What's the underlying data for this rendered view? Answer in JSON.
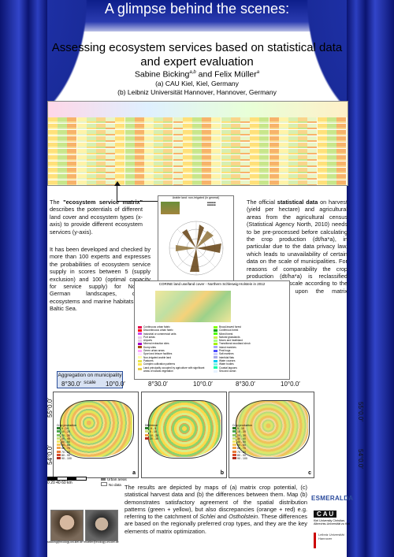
{
  "banner": "A glimpse behind the scenes:",
  "title_line1": "Assessing ecosystem services based on statistical data",
  "title_line2": "and expert evaluation",
  "authors": {
    "a1": "Sabine Bicking",
    "a1_sup": "a,b",
    "and": " and Felix Müller",
    "a2_sup": "a"
  },
  "affiliations": {
    "a": "(a) CAU Kiel, Kiel, Germany",
    "b": "(b) Leibniz Universität Hannover, Hannover, Germany"
  },
  "left_text": {
    "p1_bold": "\"ecosystem service matrix\"",
    "p1_pre": "The ",
    "p1_post": " describes the potentials of different land cover and ecosystem types (x-axis) to provide different ecosystem services (y-axis).",
    "p2": "It has been developed and checked by more than 100 experts and expresses the probabilities of ecosystem service supply in scores between 5 (supply exclusion) and 100 (optimal capacity for service supply) for Northern German landscapes, coastal ecosystems and marine habitats of the Baltic Sea."
  },
  "right_text": {
    "pre": "The official ",
    "bold": "statistical data",
    "post": " on harvest (yield per hectare) and agricultural areas from the agricultural census (Statistical Agency North, 2010) needs to be pre-processed before calculating the crop production (dt/ha*a), in particular due to the data privacy law, which leads to unavailability of certain data on the scale of municipalities. For reasons of comparability the crop production (dt/ha*a) is reclassified using a relative scale according to the results based upon the matrix approach."
  },
  "radar_caption": "Arable land: non-irrigated (in general)",
  "landcover_caption": "CORINE land use/land cover - Northern Schleswig-Holstein in 2012",
  "landcover_legend_left": [
    {
      "label": "Continuous urban fabric",
      "color": "#e6004d"
    },
    {
      "label": "Discontinuous urban fabric",
      "color": "#ff0000"
    },
    {
      "label": "Industrial or commercial units",
      "color": "#cc4df2"
    },
    {
      "label": "Port areas",
      "color": "#e6cce6"
    },
    {
      "label": "Airports",
      "color": "#e6cce6"
    },
    {
      "label": "Mineral extraction sites",
      "color": "#a600cc"
    },
    {
      "label": "Dump sites",
      "color": "#a64d00"
    },
    {
      "label": "Green urban areas",
      "color": "#ffa6ff"
    },
    {
      "label": "Sport and leisure facilities",
      "color": "#ffe6ff"
    },
    {
      "label": "Non-irrigated arable land",
      "color": "#ffffa8"
    },
    {
      "label": "Pastures",
      "color": "#e6e64d"
    },
    {
      "label": "Complex cultivation patterns",
      "color": "#ffe64d"
    },
    {
      "label": "Land principally occupied by agriculture with significant areas of natural vegetation",
      "color": "#e6cc4d"
    }
  ],
  "landcover_legend_right": [
    {
      "label": "Broad-leaved forest",
      "color": "#80ff00"
    },
    {
      "label": "Coniferous forest",
      "color": "#00a600"
    },
    {
      "label": "Mixed forest",
      "color": "#4dff00"
    },
    {
      "label": "Natural grasslands",
      "color": "#ccf24d"
    },
    {
      "label": "Moors and heathland",
      "color": "#a6ff80"
    },
    {
      "label": "Transitional woodland shrub",
      "color": "#a6f200"
    },
    {
      "label": "Inland marshes",
      "color": "#a6a6ff"
    },
    {
      "label": "Peat bogs",
      "color": "#4d4dff"
    },
    {
      "label": "Salt marshes",
      "color": "#ccccff"
    },
    {
      "label": "Intertidal flats",
      "color": "#a6a6e6"
    },
    {
      "label": "Water courses",
      "color": "#00ccf2"
    },
    {
      "label": "Water bodies",
      "color": "#80f2e6"
    },
    {
      "label": "Coastal lagoons",
      "color": "#00ffa6"
    },
    {
      "label": "Sea and ocean",
      "color": "#e6f2ff"
    }
  ],
  "aggregation_label": "Aggregation on municipality scale",
  "coords": {
    "lon1": "8°30.0′",
    "lon2": "10°0.0′",
    "lat1": "55°0.0′",
    "lat2": "54°0.0′"
  },
  "maps": [
    {
      "tag": "a",
      "legend_title": "Crop production",
      "legend": [
        "5 - 10",
        "10 - 20",
        "20 - 30",
        "30 - 40",
        "40 - 50",
        "50 - 60",
        "60 - 70",
        "70 - 80",
        "80 - 90",
        "90 - 100"
      ]
    },
    {
      "tag": "b",
      "legend_title": "Difference",
      "legend": [
        "-5 - 5",
        "5 - 10",
        "10 - 20",
        "20 - 30"
      ]
    },
    {
      "tag": "c",
      "legend_title": "Crop production",
      "legend": [
        "5 - 10",
        "10 - 20",
        "20 - 30",
        "30 - 40",
        "40 - 50",
        "50 - 60",
        "60 - 70",
        "70 - 80",
        "80 - 90",
        "90 - 100"
      ]
    }
  ],
  "scale_bar": "0   20   40   60 km",
  "urban_label": "Urban areas",
  "nodata_label": "No data",
  "bottom_text": {
    "pre": "The results are depicted by maps of (a) matrix crop potential, (c) statistical harvest data and (b) the differences between them. Map (b) demonstrates satisfactory agreement of the spatial distribution patterns (green + yellow), but also discrepancies (orange + red) e.g. referring to the catchment of ",
    "i1": "Schlei",
    "mid": " and ",
    "i2": "Ostholstein",
    "post": ". These differences are based on the regionally preferred crop types, and they are the key elements of matrix optimization."
  },
  "logos": {
    "esmeralda": "ESMERALDA",
    "cau": "C A U",
    "cau_sub": "Kiel University Christian-Albrechts-Universität zu Kiel",
    "luh": "Leibniz Universität Hannover"
  },
  "email": "sbicking@ecology.uni-kiel.de  fmueller@ecology.uni-kiel.de"
}
